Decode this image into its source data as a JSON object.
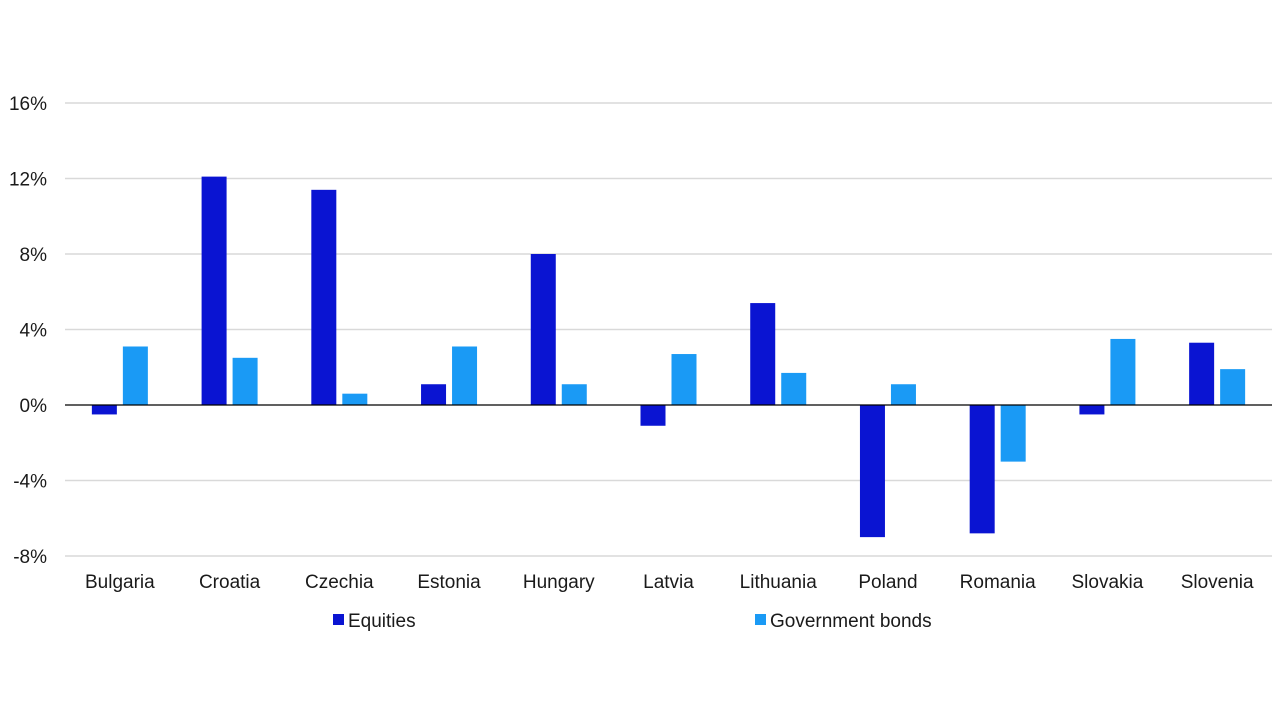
{
  "chart_data": {
    "type": "bar",
    "title": "",
    "xlabel": "",
    "ylabel": "",
    "categories": [
      "Bulgaria",
      "Croatia",
      "Czechia",
      "Estonia",
      "Hungary",
      "Latvia",
      "Lithuania",
      "Poland",
      "Romania",
      "Slovakia",
      "Slovenia"
    ],
    "series": [
      {
        "name": "Equities",
        "color": "#0a14d2",
        "values": [
          -0.5,
          12.1,
          11.4,
          1.1,
          8.0,
          -1.1,
          5.4,
          -7.0,
          -6.8,
          -0.5,
          3.3
        ]
      },
      {
        "name": "Government bonds",
        "color": "#1a9af5",
        "values": [
          3.1,
          2.5,
          0.6,
          3.1,
          1.1,
          2.7,
          1.7,
          1.1,
          -3.0,
          3.5,
          1.9
        ]
      }
    ],
    "ylim": [
      -8,
      16
    ],
    "yticks": [
      16,
      12,
      8,
      4,
      0,
      -4,
      -8
    ],
    "ytick_labels": [
      "16%",
      "12%",
      "8%",
      "4%",
      "0%",
      "-4%",
      "-8%"
    ],
    "grid": true,
    "legend_position": "bottom"
  }
}
